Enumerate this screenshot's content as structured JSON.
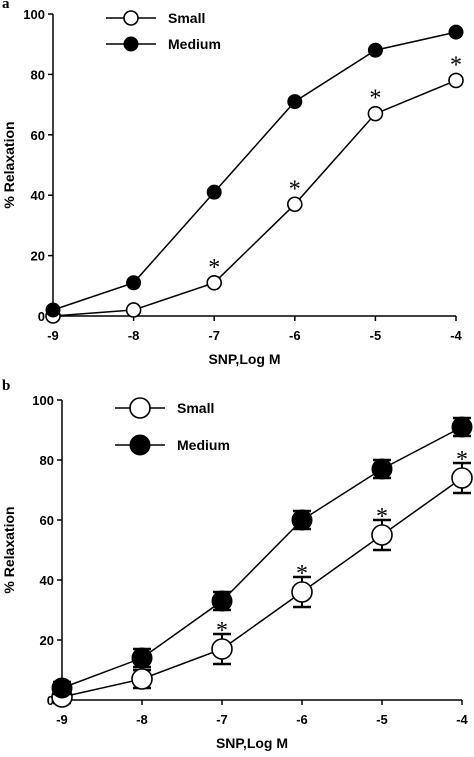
{
  "chart_data": [
    {
      "type": "line",
      "panel_label": "a",
      "xlabel": "SNP,Log M",
      "ylabel": "% Relaxation",
      "xlim": [
        -9,
        -4
      ],
      "ylim": [
        0,
        100
      ],
      "x_ticks": [
        -9,
        -8,
        -7,
        -6,
        -5,
        -4
      ],
      "y_ticks": [
        0,
        20,
        40,
        60,
        80,
        100
      ],
      "legend_position": "top-left",
      "error_bars": false,
      "series": [
        {
          "name": "Small",
          "marker": "open-circle",
          "x": [
            -9,
            -8,
            -7,
            -6,
            -5,
            -4
          ],
          "y": [
            0,
            2,
            11,
            37,
            67,
            78
          ],
          "significant": [
            false,
            false,
            true,
            true,
            true,
            true
          ]
        },
        {
          "name": "Medium",
          "marker": "filled-circle",
          "x": [
            -9,
            -8,
            -7,
            -6,
            -5,
            -4
          ],
          "y": [
            2,
            11,
            41,
            71,
            88,
            94
          ],
          "significant": [
            false,
            false,
            false,
            false,
            false,
            false
          ]
        }
      ],
      "significance_marker": "*"
    },
    {
      "type": "line",
      "panel_label": "b",
      "xlabel": "SNP,Log M",
      "ylabel": "% Relaxation",
      "xlim": [
        -9,
        -4
      ],
      "ylim": [
        0,
        100
      ],
      "x_ticks": [
        -9,
        -8,
        -7,
        -6,
        -5,
        -4
      ],
      "y_ticks": [
        0,
        20,
        40,
        60,
        80,
        100
      ],
      "legend_position": "top-left",
      "error_bars": true,
      "series": [
        {
          "name": "Small",
          "marker": "open-circle",
          "x": [
            -9,
            -8,
            -7,
            -6,
            -5,
            -4
          ],
          "y": [
            1,
            7,
            17,
            36,
            55,
            74
          ],
          "error": [
            2,
            3,
            5,
            5,
            5,
            5
          ],
          "significant": [
            false,
            false,
            true,
            true,
            true,
            true
          ]
        },
        {
          "name": "Medium",
          "marker": "filled-circle",
          "x": [
            -9,
            -8,
            -7,
            -6,
            -5,
            -4
          ],
          "y": [
            4,
            14,
            33,
            60,
            77,
            91
          ],
          "error": [
            2,
            3,
            3,
            3,
            3,
            3
          ],
          "significant": [
            false,
            false,
            false,
            false,
            false,
            false
          ]
        }
      ],
      "significance_marker": "*"
    }
  ]
}
